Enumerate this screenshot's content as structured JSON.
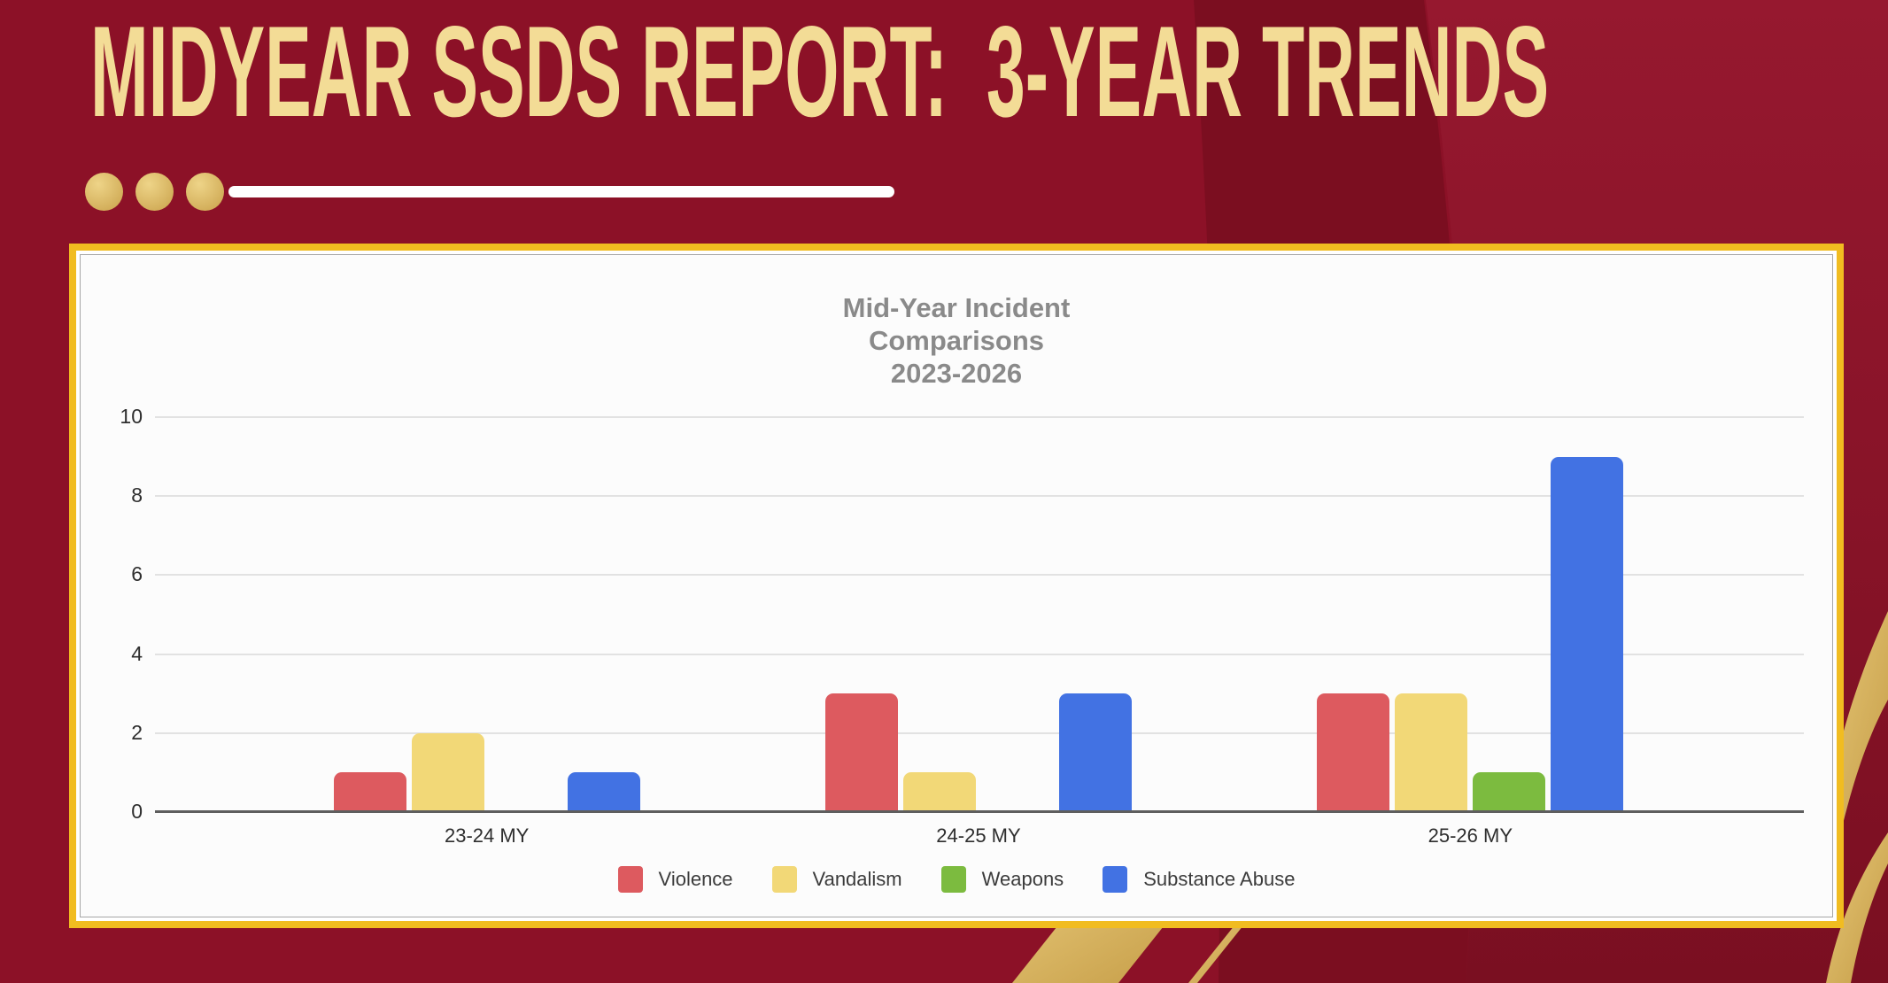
{
  "slide": {
    "title": "MIDYEAR SSDS REPORT:  3-YEAR TRENDS"
  },
  "chart_data": {
    "type": "bar",
    "title": "Mid-Year Incident Comparisons 2023-2026",
    "title_lines": [
      "Mid-Year Incident",
      "Comparisons",
      "2023-2026"
    ],
    "categories": [
      "23-24 MY",
      "24-25 MY",
      "25-26 MY"
    ],
    "series": [
      {
        "name": "Violence",
        "color": "#DD5A5F",
        "values": [
          1,
          3,
          3
        ]
      },
      {
        "name": "Vandalism",
        "color": "#F2D877",
        "values": [
          2,
          1,
          3
        ]
      },
      {
        "name": "Weapons",
        "color": "#7CBB3F",
        "values": [
          0,
          0,
          1
        ]
      },
      {
        "name": "Substance Abuse",
        "color": "#4272E3",
        "values": [
          1,
          3,
          9
        ]
      }
    ],
    "xlabel": "",
    "ylabel": "",
    "ylim": [
      0,
      10
    ],
    "y_ticks": [
      0,
      2,
      4,
      6,
      8,
      10
    ],
    "grid": true,
    "legend_position": "bottom"
  },
  "colors": {
    "background": "#8C1127",
    "background_dark_band": "#7B0E20",
    "background_light_top": "#96182F",
    "background_light_bottom": "#7A0F21",
    "gold_ribbon_light": "#E7C878",
    "gold_ribbon_dark": "#C49B45",
    "panel_border": "#F1BC20",
    "panel_mat": "#FFFFFF",
    "chart_bg": "#FCFCFC",
    "chart_border": "#A6A6A6",
    "grid": "#E2E2E2",
    "axis": "#5E5E5E",
    "chart_title": "#8A8A8A",
    "axis_label": "#2E2E2E",
    "legend_label": "#3B3B3B",
    "title_text": "#F3DC96",
    "decor_line": "#FFFFFF",
    "dot_gold_light": "#EED488",
    "dot_gold_dark": "#C9A14A"
  }
}
